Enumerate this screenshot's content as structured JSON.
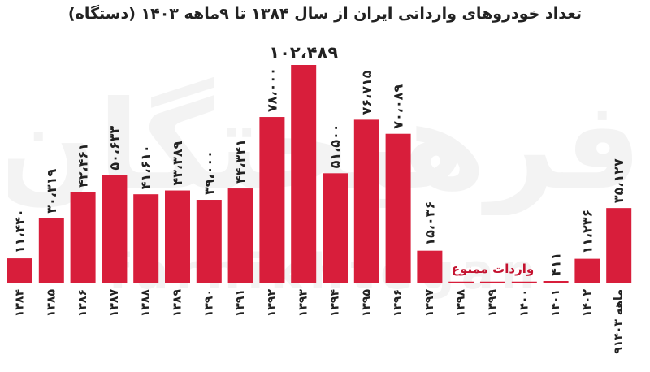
{
  "colors": {
    "bar": "#d81e3b",
    "text": "#222222",
    "note": "#c4122f",
    "baseline": "#888888"
  },
  "watermark": {
    "text": "فرهیختگان",
    "latin": "farhikhtegan"
  },
  "chart_data": {
    "type": "bar",
    "title": "تعداد خودروهای وارداتی ایران از سال ۱۳۸۴ تا ۹ماهه ۱۴۰۳ (دستگاه)",
    "xlabel": "",
    "ylabel": "",
    "ylim": [
      0,
      110000
    ],
    "grid": false,
    "legend": "none",
    "categories": [
      "۱۳۸۴",
      "۱۳۸۵",
      "۱۳۸۶",
      "۱۳۸۷",
      "۱۳۸۸",
      "۱۳۸۹",
      "۱۳۹۰",
      "۱۳۹۱",
      "۱۳۹۲",
      "۱۳۹۳",
      "۱۳۹۴",
      "۱۳۹۵",
      "۱۳۹۶",
      "۱۳۹۷",
      "۱۳۹۸",
      "۱۳۹۹",
      "۱۴۰۰",
      "۱۴۰۱",
      "۱۴۰۲",
      "۹ماهه ۱۴۰۳"
    ],
    "values": [
      11440,
      30319,
      42461,
      50633,
      41610,
      43389,
      39000,
      44341,
      78000,
      102489,
      51500,
      76715,
      70089,
      15036,
      0,
      0,
      0,
      411,
      11236,
      35127
    ],
    "labels": [
      "۱۱،۴۴۰",
      "۳۰،۳۱۹",
      "۴۲،۴۶۱",
      "۵۰،۶۳۳",
      "۴۱،۶۱۰",
      "۴۳،۳۸۹",
      "۳۹،۰۰۰",
      "۴۴،۳۴۱",
      "۷۸،۰۰۰",
      "۱۰۲،۴۸۹",
      "۵۱،۵۰۰",
      "۷۶،۷۱۵",
      "۷۰،۰۸۹",
      "۱۵،۰۳۶",
      "",
      "",
      "",
      "۴۱۱",
      "۱۱،۲۳۶",
      "۳۵،۱۲۷"
    ],
    "annotations": [
      {
        "text": "واردات ممنوع",
        "categories": [
          "۱۳۹۸",
          "۱۳۹۹",
          "۱۴۰۰"
        ]
      }
    ]
  }
}
